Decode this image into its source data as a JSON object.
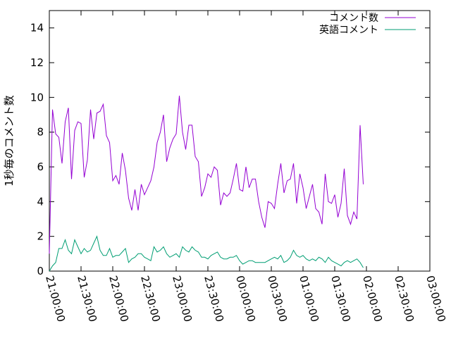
{
  "chart_data": {
    "type": "line",
    "title": "",
    "xlabel": "",
    "ylabel": "1秒毎のコメント数",
    "x_ticks": [
      "21:00:00",
      "21:30:00",
      "22:00:00",
      "22:30:00",
      "23:00:00",
      "23:30:00",
      "00:00:00",
      "00:30:00",
      "01:00:00",
      "01:30:00",
      "02:00:00",
      "02:30:00",
      "03:00:00"
    ],
    "xlim": [
      0,
      360
    ],
    "ylim": [
      0,
      15
    ],
    "y_ticks": [
      0,
      2,
      4,
      6,
      8,
      10,
      12,
      14
    ],
    "grid": false,
    "legend_position": "top-right",
    "x_minutes_step": 3,
    "series": [
      {
        "name": "コメント数",
        "color": "#9400d3",
        "values": [
          1.0,
          9.3,
          7.9,
          7.7,
          6.2,
          8.6,
          9.4,
          5.3,
          8.1,
          8.6,
          8.5,
          5.4,
          6.4,
          9.3,
          7.6,
          9.1,
          9.2,
          9.6,
          7.8,
          7.4,
          5.2,
          5.5,
          5.0,
          6.8,
          5.8,
          4.2,
          3.5,
          4.7,
          3.5,
          5.0,
          4.4,
          4.8,
          5.2,
          6.0,
          7.4,
          8.0,
          9.0,
          6.3,
          7.1,
          7.6,
          7.9,
          10.1,
          8.0,
          7.0,
          8.4,
          8.4,
          6.6,
          6.3,
          4.3,
          4.8,
          5.6,
          5.4,
          6.0,
          5.8,
          3.8,
          4.5,
          4.3,
          4.5,
          5.3,
          6.2,
          4.7,
          4.6,
          6.0,
          4.8,
          5.3,
          5.3,
          4.0,
          3.1,
          2.5,
          4.0,
          3.9,
          3.6,
          5.0,
          6.2,
          4.5,
          5.2,
          5.3,
          6.2,
          3.9,
          5.6,
          4.8,
          3.6,
          4.3,
          5.0,
          3.6,
          3.4,
          2.7,
          5.6,
          4.0,
          3.9,
          4.4,
          3.1,
          3.9,
          5.9,
          3.2,
          2.7,
          3.4,
          3.0,
          8.4,
          5.0
        ]
      },
      {
        "name": "英語コメント",
        "color": "#009e73",
        "values": [
          0.0,
          0.3,
          0.5,
          1.3,
          1.3,
          1.8,
          1.2,
          1.0,
          1.8,
          1.4,
          1.0,
          1.3,
          1.1,
          1.2,
          1.6,
          2.0,
          1.2,
          0.9,
          0.9,
          1.3,
          0.8,
          0.9,
          0.9,
          1.1,
          1.3,
          0.5,
          0.7,
          0.8,
          1.0,
          1.0,
          0.8,
          0.7,
          0.6,
          1.4,
          1.1,
          1.2,
          1.4,
          1.0,
          0.8,
          0.9,
          1.0,
          0.8,
          1.4,
          1.2,
          1.1,
          1.4,
          1.2,
          1.1,
          0.8,
          0.8,
          0.7,
          0.9,
          1.0,
          1.1,
          0.8,
          0.7,
          0.7,
          0.8,
          0.8,
          0.9,
          0.6,
          0.4,
          0.5,
          0.6,
          0.6,
          0.5,
          0.5,
          0.5,
          0.5,
          0.6,
          0.7,
          0.8,
          0.7,
          0.9,
          0.5,
          0.6,
          0.8,
          1.2,
          0.9,
          0.8,
          0.9,
          0.7,
          0.6,
          0.7,
          0.6,
          0.8,
          0.7,
          0.5,
          0.8,
          0.6,
          0.5,
          0.4,
          0.3,
          0.5,
          0.6,
          0.5,
          0.6,
          0.7,
          0.5,
          0.2
        ]
      }
    ]
  }
}
